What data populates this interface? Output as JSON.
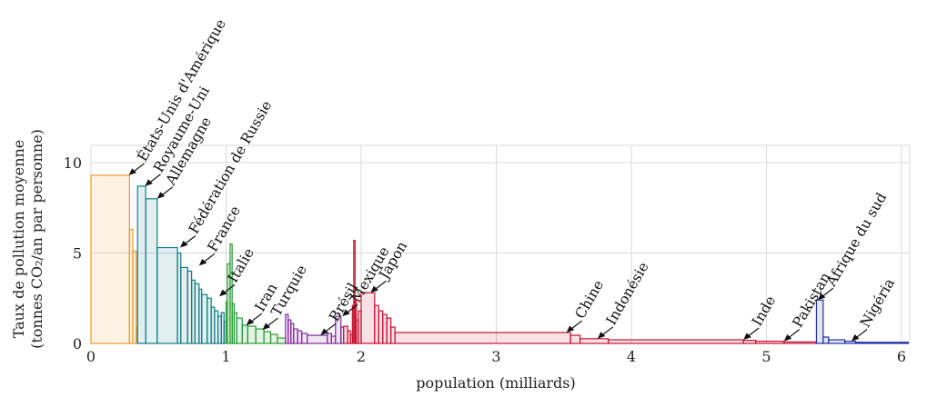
{
  "chart_data": {
    "type": "bar",
    "variant": "variable-width step bars (width = population, height = per-capita emissions)",
    "xlabel": "population (milliards)",
    "ylabel": [
      "Taux de pollution moyenne",
      "(tonnes CO₂/an par personne)"
    ],
    "xlim": [
      0,
      6.15
    ],
    "ylim": [
      0,
      10.5
    ],
    "xticks": [
      0,
      1,
      2,
      3,
      4,
      5,
      6
    ],
    "yticks": [
      0,
      5,
      10
    ],
    "grid": true,
    "legend": "none",
    "bars": [
      {
        "x0": 0.0,
        "x1": 0.285,
        "y": 9.3,
        "color": "#e89a2c"
      },
      {
        "x0": 0.285,
        "x1": 0.31,
        "y": 6.3,
        "color": "#e89a2c"
      },
      {
        "x0": 0.31,
        "x1": 0.335,
        "y": 5.1,
        "color": "#e89a2c"
      },
      {
        "x0": 0.335,
        "x1": 0.345,
        "y": 0.9,
        "color": "#e89a2c"
      },
      {
        "x0": 0.345,
        "x1": 0.405,
        "y": 8.7,
        "color": "#137d83"
      },
      {
        "x0": 0.405,
        "x1": 0.49,
        "y": 8.0,
        "color": "#137d83"
      },
      {
        "x0": 0.49,
        "x1": 0.64,
        "y": 5.3,
        "color": "#137d83"
      },
      {
        "x0": 0.64,
        "x1": 0.665,
        "y": 5.0,
        "color": "#137d83"
      },
      {
        "x0": 0.665,
        "x1": 0.715,
        "y": 4.2,
        "color": "#137d83"
      },
      {
        "x0": 0.715,
        "x1": 0.745,
        "y": 4.0,
        "color": "#137d83"
      },
      {
        "x0": 0.745,
        "x1": 0.77,
        "y": 3.5,
        "color": "#137d83"
      },
      {
        "x0": 0.77,
        "x1": 0.8,
        "y": 3.3,
        "color": "#137d83"
      },
      {
        "x0": 0.8,
        "x1": 0.82,
        "y": 3.0,
        "color": "#137d83"
      },
      {
        "x0": 0.82,
        "x1": 0.86,
        "y": 2.7,
        "color": "#137d83"
      },
      {
        "x0": 0.86,
        "x1": 0.89,
        "y": 2.5,
        "color": "#137d83"
      },
      {
        "x0": 0.89,
        "x1": 0.915,
        "y": 2.0,
        "color": "#137d83"
      },
      {
        "x0": 0.915,
        "x1": 0.94,
        "y": 1.8,
        "color": "#137d83"
      },
      {
        "x0": 0.94,
        "x1": 0.965,
        "y": 1.5,
        "color": "#137d83"
      },
      {
        "x0": 0.965,
        "x1": 0.985,
        "y": 1.7,
        "color": "#137d83"
      },
      {
        "x0": 0.985,
        "x1": 1.0,
        "y": 1.2,
        "color": "#137d83"
      },
      {
        "x0": 1.0,
        "x1": 1.01,
        "y": 2.3,
        "color": "#2a9a2f"
      },
      {
        "x0": 1.01,
        "x1": 1.03,
        "y": 4.4,
        "color": "#2a9a2f"
      },
      {
        "x0": 1.03,
        "x1": 1.045,
        "y": 5.5,
        "color": "#2a9a2f"
      },
      {
        "x0": 1.045,
        "x1": 1.06,
        "y": 2.2,
        "color": "#2a9a2f"
      },
      {
        "x0": 1.06,
        "x1": 1.08,
        "y": 1.7,
        "color": "#2a9a2f"
      },
      {
        "x0": 1.08,
        "x1": 1.12,
        "y": 1.4,
        "color": "#2a9a2f"
      },
      {
        "x0": 1.12,
        "x1": 1.16,
        "y": 1.0,
        "color": "#2a9a2f"
      },
      {
        "x0": 1.16,
        "x1": 1.22,
        "y": 0.95,
        "color": "#2a9a2f"
      },
      {
        "x0": 1.22,
        "x1": 1.28,
        "y": 0.8,
        "color": "#2a9a2f"
      },
      {
        "x0": 1.28,
        "x1": 1.33,
        "y": 0.65,
        "color": "#2a9a2f"
      },
      {
        "x0": 1.33,
        "x1": 1.38,
        "y": 0.5,
        "color": "#2a9a2f"
      },
      {
        "x0": 1.38,
        "x1": 1.44,
        "y": 0.3,
        "color": "#2a9a2f"
      },
      {
        "x0": 1.44,
        "x1": 1.46,
        "y": 1.6,
        "color": "#7b2d96"
      },
      {
        "x0": 1.46,
        "x1": 1.48,
        "y": 1.3,
        "color": "#7b2d96"
      },
      {
        "x0": 1.48,
        "x1": 1.5,
        "y": 1.1,
        "color": "#7b2d96"
      },
      {
        "x0": 1.5,
        "x1": 1.53,
        "y": 0.8,
        "color": "#7b2d96"
      },
      {
        "x0": 1.53,
        "x1": 1.56,
        "y": 0.7,
        "color": "#7b2d96"
      },
      {
        "x0": 1.56,
        "x1": 1.6,
        "y": 0.55,
        "color": "#7b2d96"
      },
      {
        "x0": 1.6,
        "x1": 1.75,
        "y": 0.45,
        "color": "#7b2d96"
      },
      {
        "x0": 1.75,
        "x1": 1.78,
        "y": 0.55,
        "color": "#7b2d96"
      },
      {
        "x0": 1.78,
        "x1": 1.81,
        "y": 0.4,
        "color": "#7b2d96"
      },
      {
        "x0": 1.81,
        "x1": 1.85,
        "y": 1.5,
        "color": "#7b2d96"
      },
      {
        "x0": 1.85,
        "x1": 1.87,
        "y": 0.9,
        "color": "#7b2d96"
      },
      {
        "x0": 1.87,
        "x1": 1.9,
        "y": 0.95,
        "color": "#c8102e"
      },
      {
        "x0": 1.9,
        "x1": 1.92,
        "y": 0.7,
        "color": "#c8102e"
      },
      {
        "x0": 1.92,
        "x1": 1.935,
        "y": 0.5,
        "color": "#c8102e"
      },
      {
        "x0": 1.935,
        "x1": 1.945,
        "y": 2.1,
        "color": "#c8102e"
      },
      {
        "x0": 1.945,
        "x1": 1.955,
        "y": 5.7,
        "color": "#c8102e"
      },
      {
        "x0": 1.955,
        "x1": 1.965,
        "y": 2.4,
        "color": "#c8102e"
      },
      {
        "x0": 1.965,
        "x1": 1.98,
        "y": 1.3,
        "color": "#c8102e"
      },
      {
        "x0": 1.98,
        "x1": 2.0,
        "y": 1.8,
        "color": "#c8102e"
      },
      {
        "x0": 2.0,
        "x1": 2.1,
        "y": 2.8,
        "color": "#c8102e"
      },
      {
        "x0": 2.1,
        "x1": 2.13,
        "y": 2.1,
        "color": "#c8102e"
      },
      {
        "x0": 2.13,
        "x1": 2.16,
        "y": 1.8,
        "color": "#c8102e"
      },
      {
        "x0": 2.16,
        "x1": 2.19,
        "y": 1.6,
        "color": "#c8102e"
      },
      {
        "x0": 2.19,
        "x1": 2.22,
        "y": 1.4,
        "color": "#c8102e"
      },
      {
        "x0": 2.22,
        "x1": 2.25,
        "y": 0.9,
        "color": "#c8102e"
      },
      {
        "x0": 2.25,
        "x1": 3.55,
        "y": 0.6,
        "color": "#c8102e"
      },
      {
        "x0": 3.55,
        "x1": 3.62,
        "y": 0.45,
        "color": "#c8102e"
      },
      {
        "x0": 3.62,
        "x1": 3.83,
        "y": 0.26,
        "color": "#c8102e"
      },
      {
        "x0": 3.83,
        "x1": 4.83,
        "y": 0.2,
        "color": "#c8102e"
      },
      {
        "x0": 4.83,
        "x1": 4.92,
        "y": 0.17,
        "color": "#c8102e"
      },
      {
        "x0": 4.92,
        "x1": 5.13,
        "y": 0.12,
        "color": "#c8102e"
      },
      {
        "x0": 5.13,
        "x1": 5.37,
        "y": 0.08,
        "color": "#c8102e"
      },
      {
        "x0": 5.37,
        "x1": 5.42,
        "y": 2.4,
        "color": "#1f2fa8"
      },
      {
        "x0": 5.42,
        "x1": 5.46,
        "y": 0.35,
        "color": "#1f2fa8"
      },
      {
        "x0": 5.46,
        "x1": 5.58,
        "y": 0.2,
        "color": "#1f2fa8"
      },
      {
        "x0": 5.58,
        "x1": 5.66,
        "y": 0.12,
        "color": "#1f2fa8"
      },
      {
        "x0": 5.66,
        "x1": 6.05,
        "y": 0.06,
        "color": "#1f2fa8"
      }
    ],
    "annotations": [
      {
        "label": "États-Unis d'Amérique",
        "x": 0.28,
        "y": 9.3
      },
      {
        "label": "Royaume-Uni",
        "x": 0.4,
        "y": 8.7
      },
      {
        "label": "Allemagne",
        "x": 0.49,
        "y": 8.0
      },
      {
        "label": "Fédération de Russie",
        "x": 0.66,
        "y": 5.3
      },
      {
        "label": "France",
        "x": 0.8,
        "y": 4.3
      },
      {
        "label": "Italie",
        "x": 0.95,
        "y": 2.6
      },
      {
        "label": "Iran",
        "x": 1.15,
        "y": 1.0
      },
      {
        "label": "Turquie",
        "x": 1.27,
        "y": 0.75
      },
      {
        "label": "Brésil",
        "x": 1.7,
        "y": 0.45
      },
      {
        "label": "Mexique",
        "x": 1.86,
        "y": 1.5
      },
      {
        "label": "Japon",
        "x": 2.07,
        "y": 2.8
      },
      {
        "label": "Chine",
        "x": 3.52,
        "y": 0.6
      },
      {
        "label": "Indonésie",
        "x": 3.75,
        "y": 0.26
      },
      {
        "label": "Inde",
        "x": 4.83,
        "y": 0.2
      },
      {
        "label": "Pakistan",
        "x": 5.13,
        "y": 0.12
      },
      {
        "label": "Afrique du sud",
        "x": 5.38,
        "y": 2.4
      },
      {
        "label": "Nigéria",
        "x": 5.63,
        "y": 0.12
      }
    ]
  }
}
